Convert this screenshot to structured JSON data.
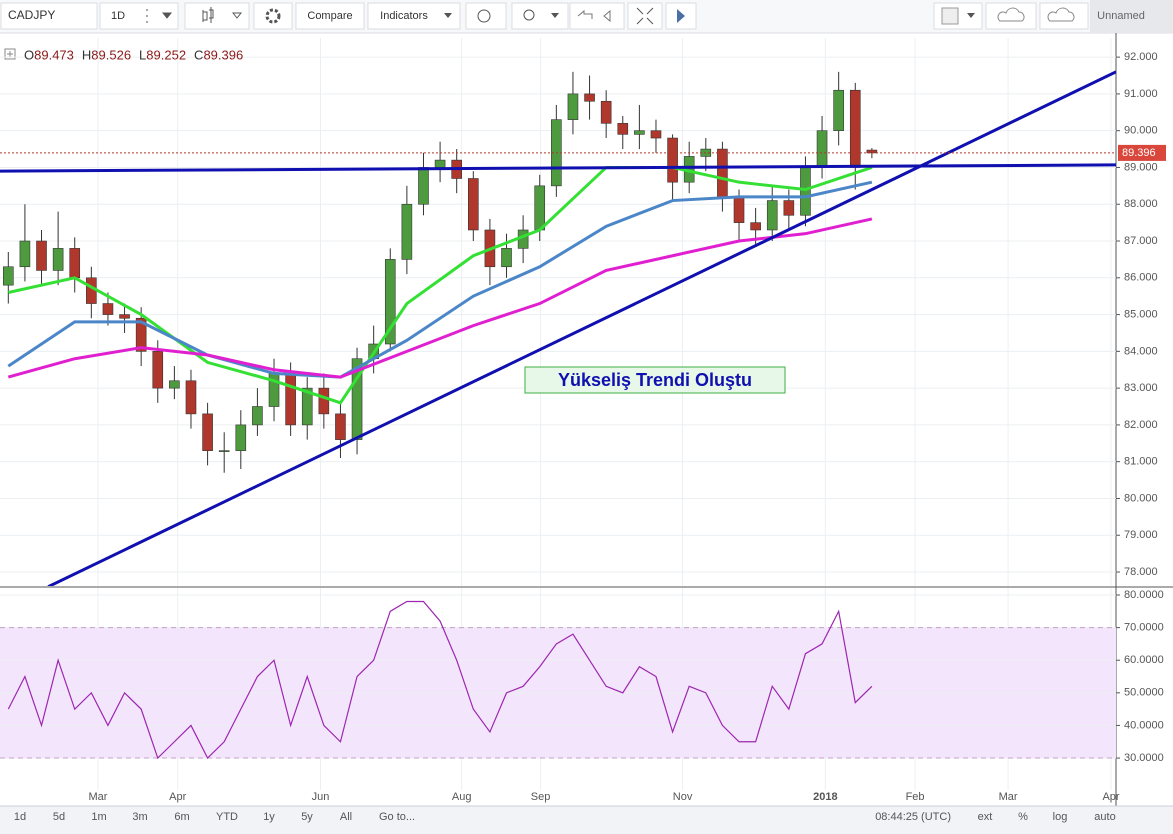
{
  "toolbar": {
    "symbol": "CADJPY",
    "interval": "1D",
    "compare": "Compare",
    "indicators": "Indicators",
    "layout": "Unnamed"
  },
  "chart_data": [
    {
      "type": "candlestick",
      "ohlc_prefixes": [
        "O",
        "H",
        "L",
        "C"
      ],
      "up_color": "#4e9a3e",
      "down_color": "#b0372c",
      "open": [
        85.8,
        86.3,
        87.0,
        86.2,
        86.8,
        86.0,
        85.3,
        85.0,
        84.9,
        84.0,
        83.0,
        83.2,
        82.3,
        81.3,
        81.3,
        82.0,
        82.5,
        83.4,
        82.0,
        83.0,
        82.3,
        81.6,
        83.8,
        84.2,
        86.5,
        88.0,
        89.0,
        89.2,
        88.7,
        87.3,
        86.3,
        86.8,
        87.3,
        88.5,
        90.3,
        91.0,
        90.8,
        90.2,
        89.9,
        90.0,
        89.8,
        88.6,
        89.3,
        89.5,
        88.2,
        87.5,
        87.3,
        88.1,
        87.7,
        89.0,
        90.0,
        91.1,
        89.473
      ],
      "high": [
        86.7,
        88.0,
        87.3,
        87.8,
        87.1,
        86.3,
        85.6,
        85.3,
        85.2,
        84.3,
        83.6,
        83.5,
        82.6,
        81.8,
        82.4,
        83.0,
        83.8,
        83.7,
        83.3,
        83.4,
        82.6,
        84.1,
        84.7,
        86.8,
        88.5,
        89.4,
        89.7,
        89.5,
        88.9,
        87.6,
        87.2,
        87.7,
        88.8,
        90.7,
        91.6,
        91.5,
        91.1,
        90.4,
        90.7,
        90.3,
        89.9,
        89.7,
        89.8,
        89.7,
        88.4,
        87.9,
        88.5,
        88.4,
        89.3,
        90.4,
        91.6,
        91.3,
        89.526
      ],
      "low": [
        85.3,
        85.9,
        85.8,
        85.8,
        85.6,
        84.9,
        84.7,
        84.5,
        83.6,
        82.6,
        82.7,
        81.9,
        80.9,
        80.7,
        80.8,
        81.7,
        82.1,
        81.7,
        81.6,
        81.9,
        81.1,
        81.2,
        83.4,
        84.0,
        86.1,
        87.7,
        88.6,
        88.3,
        87.0,
        85.8,
        86.0,
        86.4,
        87.0,
        88.2,
        89.9,
        90.3,
        89.8,
        89.5,
        89.5,
        89.4,
        88.1,
        88.3,
        88.9,
        87.8,
        87.0,
        86.9,
        87.0,
        87.3,
        87.4,
        88.7,
        89.6,
        88.4,
        89.252
      ],
      "close": [
        86.3,
        87.0,
        86.2,
        86.8,
        86.0,
        85.3,
        85.0,
        84.9,
        84.0,
        83.0,
        83.2,
        82.3,
        81.3,
        81.3,
        82.0,
        82.5,
        83.4,
        82.0,
        83.0,
        82.3,
        81.6,
        83.8,
        84.2,
        86.5,
        88.0,
        89.0,
        89.2,
        88.7,
        87.3,
        86.3,
        86.8,
        87.3,
        88.5,
        90.3,
        91.0,
        90.8,
        90.2,
        89.9,
        90.0,
        89.8,
        88.6,
        89.3,
        89.5,
        88.2,
        87.5,
        87.3,
        88.1,
        87.7,
        89.0,
        90.0,
        91.1,
        89.0,
        89.396
      ],
      "lines": [
        {
          "color": "#33e033",
          "x": [
            0,
            4,
            8,
            12,
            16,
            20,
            24,
            28,
            32,
            36,
            40,
            44,
            48,
            52
          ],
          "values": [
            85.6,
            86.0,
            85.0,
            83.7,
            83.2,
            82.6,
            85.3,
            86.6,
            87.3,
            89.0,
            89.0,
            88.6,
            88.4,
            89.0
          ]
        },
        {
          "color": "#4a86c8",
          "x": [
            0,
            4,
            8,
            12,
            16,
            20,
            24,
            28,
            32,
            36,
            40,
            44,
            48,
            52
          ],
          "values": [
            83.6,
            84.8,
            84.8,
            83.9,
            83.4,
            83.3,
            84.3,
            85.5,
            86.3,
            87.4,
            88.1,
            88.2,
            88.2,
            88.6
          ]
        },
        {
          "color": "#e020d0",
          "x": [
            0,
            4,
            8,
            12,
            16,
            20,
            24,
            28,
            32,
            36,
            40,
            44,
            48,
            52
          ],
          "values": [
            83.3,
            83.8,
            84.1,
            83.9,
            83.5,
            83.3,
            84.0,
            84.7,
            85.3,
            86.2,
            86.6,
            87.0,
            87.2,
            87.6
          ]
        }
      ],
      "trendlines": [
        {
          "color": "#1010b0",
          "x": [
            -0.5,
            66.7
          ],
          "values": [
            88.9,
            89.07
          ]
        },
        {
          "color": "#1010b0",
          "x": [
            2.4,
            66.7
          ],
          "values": [
            77.6,
            91.6
          ]
        }
      ],
      "annotation": "Yükseliş Trendi Oluştu",
      "xlim": [
        -0.5,
        66.7
      ],
      "xticks": [
        {
          "value": 5.4,
          "label": "Mar"
        },
        {
          "value": 10.2,
          "label": "Apr"
        },
        {
          "value": 18.8,
          "label": "Jun"
        },
        {
          "value": 27.3,
          "label": "Aug"
        },
        {
          "value": 32.05,
          "label": "Sep"
        },
        {
          "value": 40.6,
          "label": "Nov"
        },
        {
          "value": 49.2,
          "label": "2018"
        },
        {
          "value": 54.6,
          "label": "Feb"
        },
        {
          "value": 60.2,
          "label": "Mar"
        },
        {
          "value": 66.4,
          "label": "Apr"
        }
      ],
      "ylim": [
        77.62,
        92.52
      ],
      "yticks": [
        {
          "value": 78,
          "label": "78.000"
        },
        {
          "value": 79,
          "label": "79.000"
        },
        {
          "value": 80,
          "label": "80.000"
        },
        {
          "value": 81,
          "label": "81.000"
        },
        {
          "value": 82,
          "label": "82.000"
        },
        {
          "value": 83,
          "label": "83.000"
        },
        {
          "value": 84,
          "label": "84.000"
        },
        {
          "value": 85,
          "label": "85.000"
        },
        {
          "value": 86,
          "label": "86.000"
        },
        {
          "value": 87,
          "label": "87.000"
        },
        {
          "value": 88,
          "label": "88.000"
        },
        {
          "value": 89,
          "label": "89.000"
        },
        {
          "value": 90,
          "label": "90.000"
        },
        {
          "value": 91,
          "label": "91.000"
        },
        {
          "value": 92,
          "label": "92.000"
        }
      ],
      "grid": true
    },
    {
      "type": "line",
      "color": "#9c27b0",
      "values": [
        45,
        55,
        40,
        60,
        45,
        50,
        40,
        50,
        45,
        30,
        35,
        40,
        30,
        35,
        45,
        55,
        60,
        40,
        55,
        40,
        35,
        55,
        60,
        75,
        78,
        78,
        72,
        60,
        45,
        38,
        50,
        52,
        58,
        65,
        68,
        60,
        52,
        50,
        58,
        55,
        38,
        52,
        50,
        40,
        35,
        35,
        52,
        45,
        62,
        65,
        75,
        47,
        52
      ],
      "band": [
        30,
        70
      ],
      "band_color": "#f3e5fb",
      "ylim": [
        20.2,
        82.15
      ],
      "yticks": [
        {
          "value": 30,
          "label": "30.0000"
        },
        {
          "value": 40,
          "label": "40.0000"
        },
        {
          "value": 50,
          "label": "50.0000"
        },
        {
          "value": 60,
          "label": "60.0000"
        },
        {
          "value": 70,
          "label": "70.0000"
        },
        {
          "value": 80,
          "label": "80.0000"
        }
      ],
      "grid": true
    }
  ],
  "bottom_bar": {
    "ranges": [
      "1d",
      "5d",
      "1m",
      "3m",
      "6m",
      "YTD",
      "1y",
      "5y",
      "All"
    ],
    "goto": "Go to...",
    "clock": "08:44:25 (UTC)",
    "options": [
      "ext",
      "%",
      "log",
      "auto"
    ]
  }
}
